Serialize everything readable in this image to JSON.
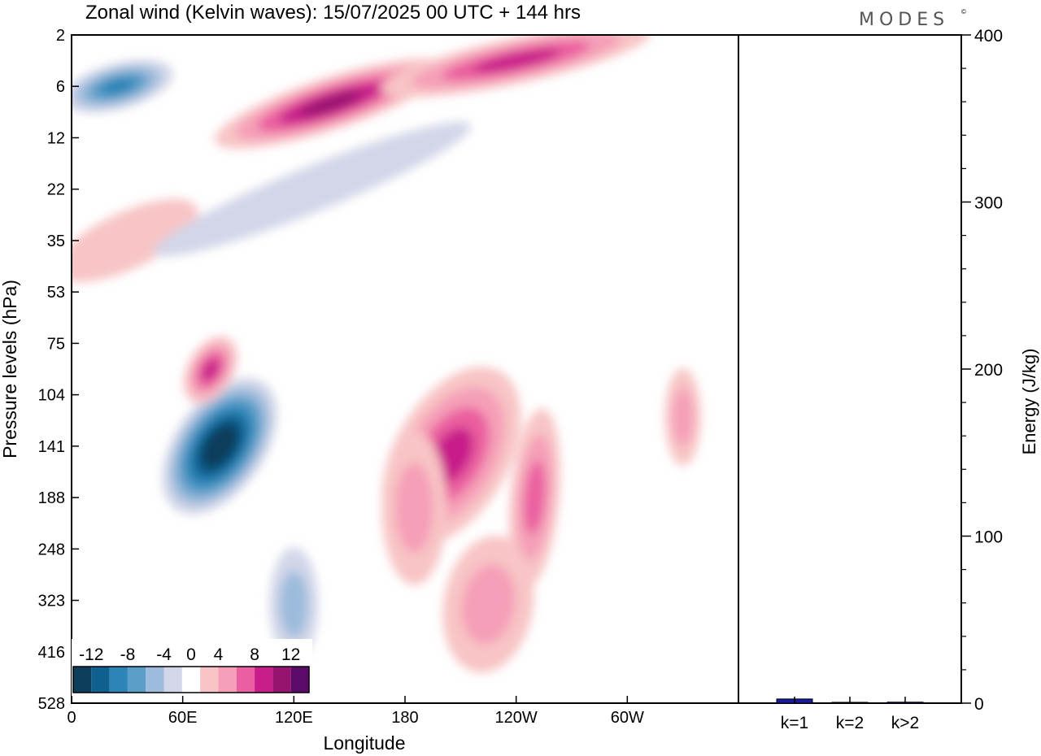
{
  "title": "Zonal wind (Kelvin waves):  15/07/2025  00 UTC  + 144 hrs",
  "brand": "MODES",
  "brand_mark": "©",
  "chart_data": [
    {
      "type": "heatmap",
      "title": "Zonal wind (Kelvin waves):  15/07/2025  00 UTC  + 144 hrs",
      "xlabel": "Longitude",
      "ylabel": "Pressure levels (hPa)",
      "x_ticks": [
        "0",
        "60E",
        "120E",
        "180",
        "120W",
        "60W"
      ],
      "x_tick_degrees": [
        0,
        60,
        120,
        180,
        240,
        300
      ],
      "x_range_degrees": [
        0,
        360
      ],
      "y_ticks": [
        "2",
        "6",
        "12",
        "22",
        "35",
        "53",
        "75",
        "104",
        "141",
        "188",
        "248",
        "323",
        "416",
        "528"
      ],
      "y_scale": "categorical pressure levels, top to bottom",
      "colorbar": {
        "tick_labels": [
          "-12",
          "-8",
          "-4",
          "0",
          "4",
          "8",
          "12"
        ],
        "bins": [
          -14,
          -12,
          -10,
          -8,
          -6,
          -4,
          -2,
          2,
          4,
          6,
          8,
          10,
          12,
          14
        ],
        "colors": [
          "#0b3d5c",
          "#0f5f8f",
          "#2c84b7",
          "#5b9ec8",
          "#9dbbdc",
          "#d2d6e8",
          "#ffffff",
          "#f8c4c5",
          "#f59fb8",
          "#ea5f9f",
          "#c81e8a",
          "#961370",
          "#5c0a69"
        ],
        "placement": "bottom-left"
      },
      "features": [
        {
          "lon": 80,
          "level": "141",
          "value": -14
        },
        {
          "lon": 25,
          "level": "6",
          "value": -8
        },
        {
          "lon": 75,
          "level": "90",
          "value": 9
        },
        {
          "lon": 140,
          "level": "8",
          "value": 10
        },
        {
          "lon": 240,
          "level": "4",
          "value": 8
        },
        {
          "lon": 205,
          "level": "150",
          "value": 8
        },
        {
          "lon": 185,
          "level": "200",
          "value": 5
        },
        {
          "lon": 250,
          "level": "188",
          "value": 6
        },
        {
          "lon": 225,
          "level": "330",
          "value": 5
        },
        {
          "lon": 120,
          "level": "330",
          "value": -4
        },
        {
          "lon": 330,
          "level": "120",
          "value": 5
        },
        {
          "lon": 30,
          "level": "35",
          "value": 3
        },
        {
          "lon": 130,
          "level": "22",
          "value": -3
        }
      ]
    },
    {
      "type": "bar",
      "ylabel": "Energy (J/kg)",
      "categories": [
        "k=1",
        "k=2",
        "k>2"
      ],
      "values": [
        2.5,
        0.5,
        0.6
      ],
      "ylim": [
        0,
        400
      ],
      "y_ticks": [
        "0",
        "100",
        "200",
        "300",
        "400"
      ],
      "bar_color": "#1a1aa0"
    }
  ]
}
